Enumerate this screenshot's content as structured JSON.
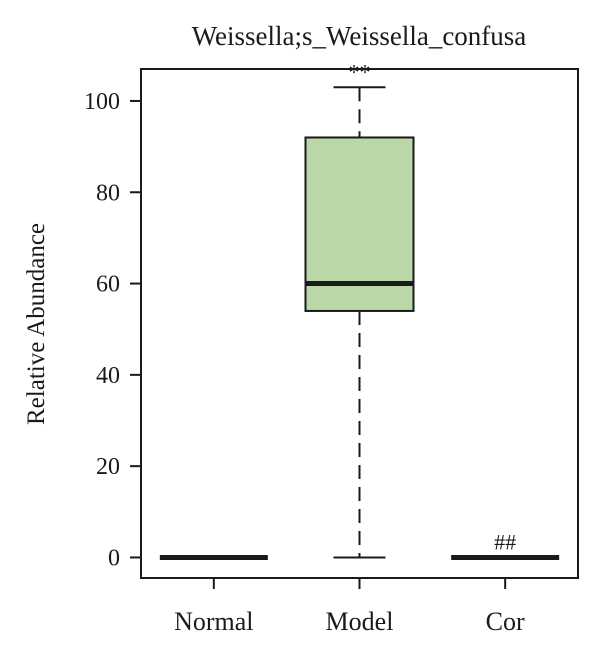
{
  "chart_data": {
    "type": "box",
    "title": "Weissella;s_Weissella_confusa",
    "xlabel": "",
    "ylabel": "Relative Abundance",
    "ylim": [
      -4.5,
      107
    ],
    "yticks": [
      0,
      20,
      40,
      60,
      80,
      100
    ],
    "categories": [
      "Normal",
      "Model",
      "Cor"
    ],
    "boxes": [
      {
        "category": "Normal",
        "min": 0,
        "q1": 0,
        "median": 0,
        "q3": 0,
        "max": 0,
        "annotation": ""
      },
      {
        "category": "Model",
        "min": 0,
        "q1": 54,
        "median": 60,
        "q3": 92,
        "max": 103,
        "annotation": "**"
      },
      {
        "category": "Cor",
        "min": 0,
        "q1": 0,
        "median": 0,
        "q3": 0,
        "max": 0,
        "annotation": "##"
      }
    ],
    "colors": {
      "box_fill": "#b9d7a7",
      "stroke": "#1a1a1a"
    }
  }
}
